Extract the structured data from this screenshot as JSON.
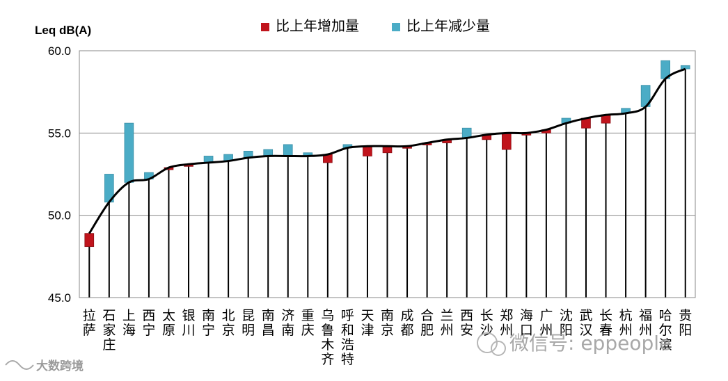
{
  "chart_data": {
    "type": "bar",
    "ylabel": "Leq dB(A)",
    "ylim": [
      45,
      60
    ],
    "yticks": [
      "45.0",
      "50.0",
      "55.0",
      "60.0"
    ],
    "grid": true,
    "legend_position": "top",
    "series": [
      {
        "name": "比上年增加量",
        "color": "#c0141c"
      },
      {
        "name": "比上年减少量",
        "color": "#4bacc6"
      }
    ],
    "categories": [
      "拉萨",
      "石家庄",
      "上海",
      "西宁",
      "太原",
      "银川",
      "南宁",
      "北京",
      "昆明",
      "南昌",
      "济南",
      "重庆",
      "乌鲁木齐",
      "呼和浩特",
      "天津",
      "南京",
      "成都",
      "合肥",
      "兰州",
      "西安",
      "长沙",
      "郑州",
      "海口",
      "广州",
      "沈阳",
      "武汉",
      "长春",
      "杭州",
      "福州",
      "哈尔滨",
      "贵阳"
    ],
    "values": [
      48.9,
      50.8,
      52.0,
      52.2,
      52.9,
      53.1,
      53.2,
      53.3,
      53.5,
      53.6,
      53.6,
      53.6,
      53.7,
      54.1,
      54.2,
      54.2,
      54.2,
      54.4,
      54.6,
      54.7,
      54.9,
      55.0,
      55.0,
      55.2,
      55.6,
      55.9,
      56.1,
      56.2,
      56.6,
      58.3,
      58.9
    ],
    "change": [
      0.8,
      -1.7,
      -3.6,
      -0.4,
      0.1,
      0.1,
      -0.4,
      -0.4,
      -0.4,
      -0.4,
      -0.7,
      -0.2,
      0.5,
      -0.2,
      0.6,
      0.4,
      0.1,
      0.1,
      0.2,
      -0.6,
      0.3,
      1.0,
      0.1,
      0.2,
      -0.3,
      0.6,
      0.5,
      -0.3,
      -1.3,
      -1.1,
      -0.2
    ]
  },
  "watermark": {
    "wechat": "微信号: eppeople",
    "logo": "大数跨境"
  }
}
